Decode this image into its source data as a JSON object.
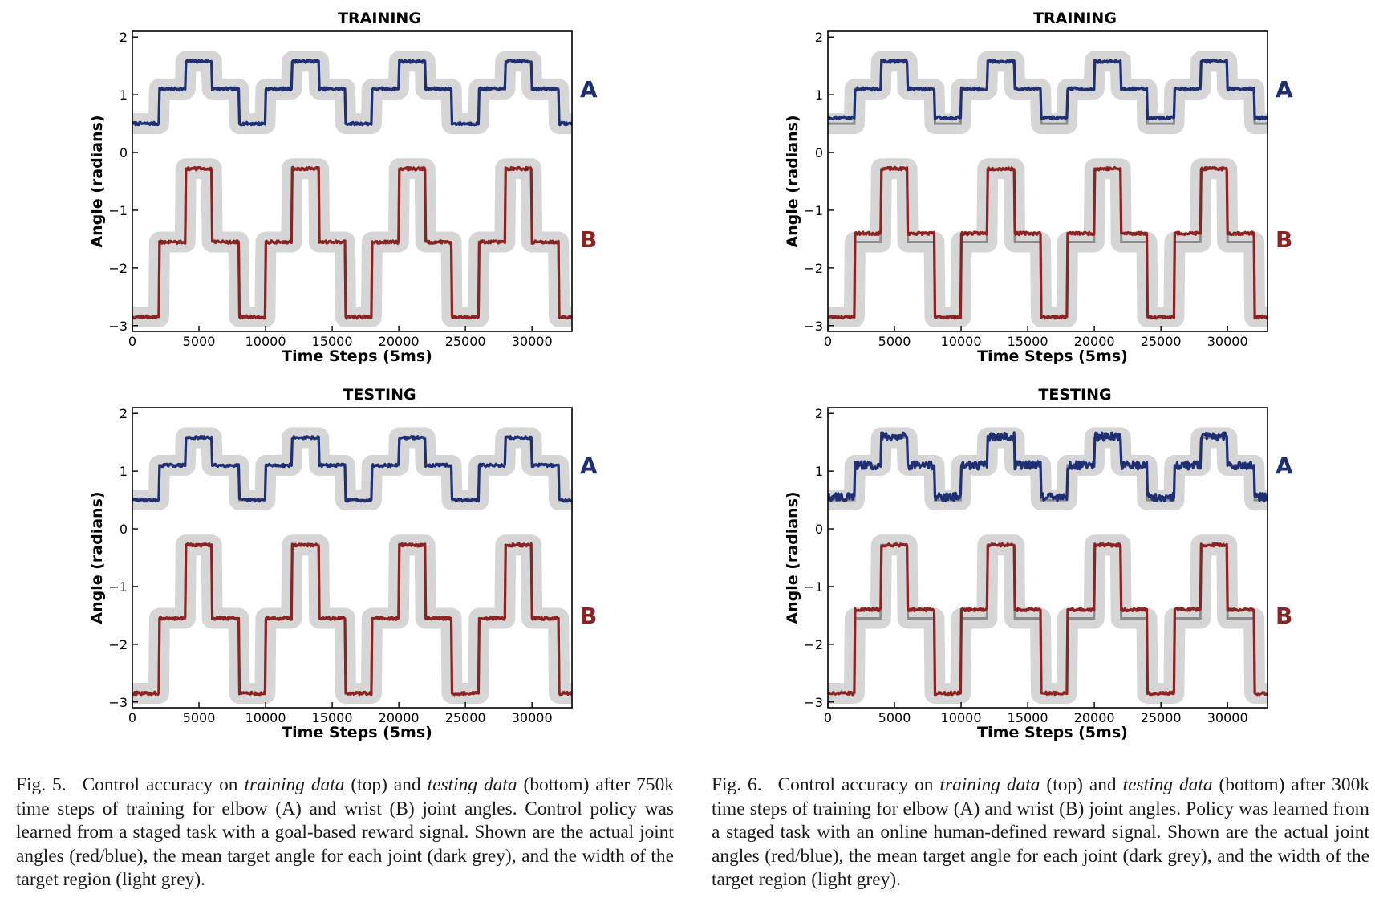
{
  "style": {
    "joint_a_color": "#1f2f73",
    "joint_b_color": "#8b2323",
    "target_mean_color": "#8c8c8c",
    "target_region_color": "#d6d6d6"
  },
  "panels": [
    {
      "id": "fig5-training",
      "figure": 5,
      "title": "TRAINING"
    },
    {
      "id": "fig6-training",
      "figure": 6,
      "title": "TRAINING"
    },
    {
      "id": "fig5-testing",
      "figure": 5,
      "title": "TESTING"
    },
    {
      "id": "fig6-testing",
      "figure": 6,
      "title": "TESTING"
    }
  ],
  "chart_data": [
    {
      "type": "line",
      "title": "TRAINING",
      "xlabel": "Time Steps (5ms)",
      "ylabel": "Angle (radians)",
      "xlim": [
        0,
        33000
      ],
      "ylim": [
        -3.1,
        2.1
      ],
      "xticks": [
        0,
        5000,
        10000,
        15000,
        20000,
        25000,
        30000
      ],
      "yticks": [
        2,
        1,
        0,
        -1,
        -2,
        -3
      ],
      "grid": false,
      "series": [
        {
          "name": "A",
          "kind": "actual",
          "period": 8000,
          "levels": [
            0.5,
            1.1,
            1.58,
            1.1
          ],
          "offset": 0
        },
        {
          "name": "B",
          "kind": "actual",
          "period": 8000,
          "levels": [
            -2.85,
            -1.55,
            -0.28,
            -1.55
          ],
          "offset": 0
        }
      ]
    },
    {
      "type": "line",
      "title": "TRAINING",
      "xlabel": "Time Steps (5ms)",
      "ylabel": "Angle (radians)",
      "xlim": [
        0,
        33000
      ],
      "ylim": [
        -3.1,
        2.1
      ],
      "xticks": [
        0,
        5000,
        10000,
        15000,
        20000,
        25000,
        30000
      ],
      "yticks": [
        2,
        1,
        0,
        -1,
        -2,
        -3
      ],
      "grid": false,
      "series": [
        {
          "name": "A",
          "kind": "actual",
          "period": 8000,
          "levels": [
            0.6,
            1.1,
            1.58,
            1.1
          ],
          "offset": 0
        },
        {
          "name": "B",
          "kind": "actual",
          "period": 8000,
          "levels": [
            -2.85,
            -1.4,
            -0.28,
            -1.4
          ],
          "offset": 0
        }
      ]
    },
    {
      "type": "line",
      "title": "TESTING",
      "xlabel": "Time Steps (5ms)",
      "ylabel": "Angle (radians)",
      "xlim": [
        0,
        33000
      ],
      "ylim": [
        -3.1,
        2.1
      ],
      "xticks": [
        0,
        5000,
        10000,
        15000,
        20000,
        25000,
        30000
      ],
      "yticks": [
        2,
        1,
        0,
        -1,
        -2,
        -3
      ],
      "grid": false,
      "series": [
        {
          "name": "A",
          "kind": "actual",
          "period": 8000,
          "levels": [
            0.5,
            1.1,
            1.58,
            1.1
          ],
          "offset": 0
        },
        {
          "name": "B",
          "kind": "actual",
          "period": 8000,
          "levels": [
            -2.85,
            -1.55,
            -0.28,
            -1.55
          ],
          "offset": 0
        }
      ]
    },
    {
      "type": "line",
      "title": "TESTING",
      "xlabel": "Time Steps (5ms)",
      "ylabel": "Angle (radians)",
      "xlim": [
        0,
        33000
      ],
      "ylim": [
        -3.1,
        2.1
      ],
      "xticks": [
        0,
        5000,
        10000,
        15000,
        20000,
        25000,
        30000
      ],
      "yticks": [
        2,
        1,
        0,
        -1,
        -2,
        -3
      ],
      "grid": false,
      "series": [
        {
          "name": "A",
          "kind": "actual",
          "period": 8000,
          "levels": [
            0.55,
            1.1,
            1.6,
            1.1
          ],
          "offset": 0
        },
        {
          "name": "B",
          "kind": "actual",
          "period": 8000,
          "levels": [
            -2.85,
            -1.4,
            -0.28,
            -1.4
          ],
          "offset": 0
        }
      ]
    }
  ],
  "targets": {
    "A_levels": [
      0.5,
      1.1,
      1.58,
      1.1
    ],
    "B_levels": [
      -2.85,
      -1.55,
      -0.28,
      -1.55
    ],
    "period": 8000,
    "offset": 0
  },
  "captions": {
    "fig5": {
      "lead": "Fig. 5.",
      "p1": "Control accuracy on ",
      "em1": "training data",
      "p2": " (top) and ",
      "em2": "testing data",
      "p3": " (bottom) after 750k time steps of training for elbow (A) and wrist (B) joint angles. Control policy was learned from a staged task with a goal-based reward signal. Shown are the actual joint angles (red/blue), the mean target angle for each joint (dark grey), and the width of the target region (light grey)."
    },
    "fig6": {
      "lead": "Fig. 6.",
      "p1": "Control accuracy on ",
      "em1": "training data",
      "p2": " (top) and ",
      "em2": "testing data",
      "p3": " (bottom) after 300k time steps of training for elbow (A) and wrist (B) joint angles. Policy was learned from a staged task with an online human-defined reward signal. Shown are the actual joint angles (red/blue), the mean target angle for each joint (dark grey), and the width of the target region (light grey)."
    }
  }
}
